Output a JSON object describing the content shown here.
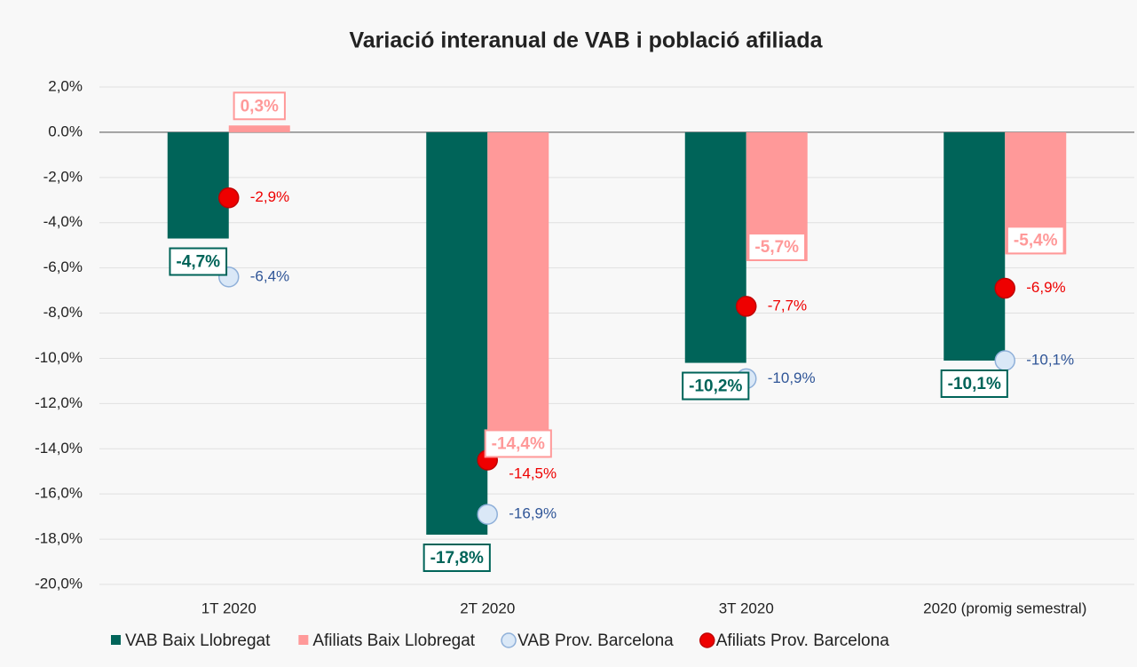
{
  "chart_data": {
    "type": "bar",
    "title": "Variació interanual de VAB i població afiliada",
    "categories": [
      "1T 2020",
      "2T 2020",
      "3T 2020",
      "2020 (promig semestral)"
    ],
    "series": [
      {
        "name": "VAB Baix Llobregat",
        "color": "#006459",
        "kind": "bar",
        "values": [
          -4.7,
          -17.8,
          -10.2,
          -10.1
        ],
        "value_labels": [
          "-4,7%",
          "-17,8%",
          "-10,2%",
          "-10,1%"
        ]
      },
      {
        "name": "Afiliats Baix Llobregat",
        "color": "#ff9999",
        "kind": "bar",
        "values": [
          0.3,
          -14.4,
          -5.7,
          -5.4
        ],
        "value_labels": [
          "0,3%",
          "-14,4%",
          "-5,7%",
          "-5,4%"
        ]
      },
      {
        "name": "VAB Prov. Barcelona",
        "color": "#dae8f7",
        "kind": "dot",
        "values": [
          -6.4,
          -16.9,
          -10.9,
          -10.1
        ],
        "value_labels": [
          "-6,4%",
          "-16,9%",
          "-10,9%",
          "-10,1%"
        ]
      },
      {
        "name": "Afiliats Prov. Barcelona",
        "color": "#ee0000",
        "kind": "dot",
        "values": [
          -2.9,
          -14.5,
          -7.7,
          -6.9
        ],
        "value_labels": [
          "-2,9%",
          "-14,5%",
          "-7,7%",
          "-6,9%"
        ]
      }
    ],
    "ylim": [
      -20,
      2
    ],
    "yticks": [
      {
        "value": 2,
        "label": "2,0%"
      },
      {
        "value": 0,
        "label": "0.0%"
      },
      {
        "value": -2,
        "label": "-2,0%"
      },
      {
        "value": -4,
        "label": "-4,0%"
      },
      {
        "value": -6,
        "label": "-6,0%"
      },
      {
        "value": -8,
        "label": "-8,0%"
      },
      {
        "value": -10,
        "label": "-10,0%"
      },
      {
        "value": -12,
        "label": "-12,0%"
      },
      {
        "value": -14,
        "label": "-14,0%"
      },
      {
        "value": -16,
        "label": "-16,0%"
      },
      {
        "value": -18,
        "label": "-18,0%"
      },
      {
        "value": -20,
        "label": "-20,0%"
      }
    ],
    "grid": true,
    "legend": "bottom"
  }
}
